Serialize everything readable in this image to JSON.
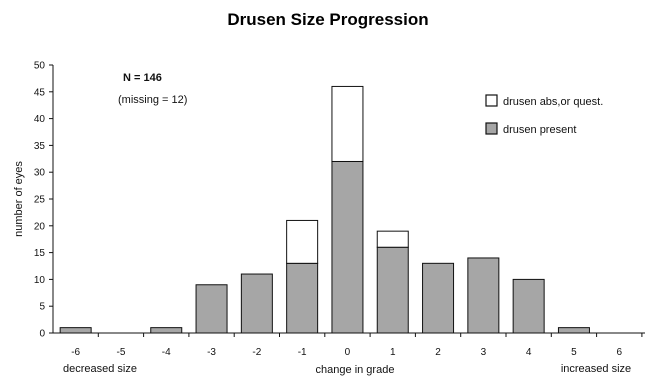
{
  "chart_data": {
    "type": "bar",
    "title": "Drusen Size Progression",
    "xlabel": "change in grade",
    "ylabel": "number of eyes",
    "x_end_labels": {
      "left": "decreased size",
      "right": "increased size"
    },
    "categories": [
      "-6",
      "-5",
      "-4",
      "-3",
      "-2",
      "-1",
      "0",
      "1",
      "2",
      "3",
      "4",
      "5",
      "6"
    ],
    "series": [
      {
        "name": "drusen present",
        "color": "#a6a6a6",
        "values": [
          1,
          0,
          1,
          9,
          11,
          13,
          32,
          16,
          13,
          14,
          10,
          1,
          0
        ]
      },
      {
        "name": "drusen abs,or quest.",
        "color": "#ffffff",
        "values": [
          0,
          0,
          0,
          0,
          0,
          8,
          14,
          3,
          0,
          0,
          0,
          0,
          0
        ]
      }
    ],
    "stacked": true,
    "ylim": [
      0,
      50
    ],
    "yticks": [
      "0",
      "5",
      "10",
      "15",
      "20",
      "25",
      "30",
      "35",
      "40",
      "45",
      "50"
    ],
    "legend_position": "top-right",
    "annotations": [
      "N = 146",
      "(missing = 12)"
    ],
    "grid": false
  }
}
